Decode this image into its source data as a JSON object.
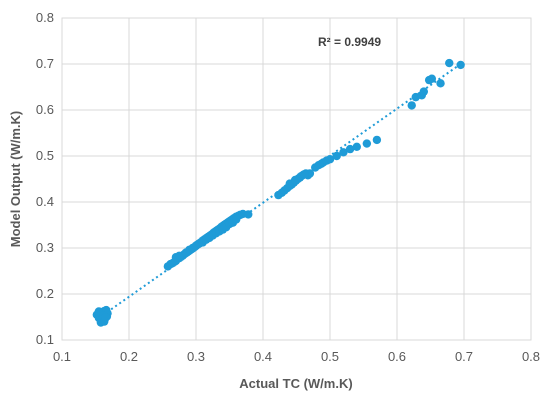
{
  "chart_data": {
    "type": "scatter",
    "title": "",
    "xlabel": "Actual TC (W/m.K)",
    "ylabel": "Model Output (W/m.K)",
    "xlim": [
      0.1,
      0.8
    ],
    "ylim": [
      0.1,
      0.8
    ],
    "x_ticks": [
      "0.1",
      "0.2",
      "0.3",
      "0.4",
      "0.5",
      "0.6",
      "0.7",
      "0.8"
    ],
    "y_ticks": [
      "0.1",
      "0.2",
      "0.3",
      "0.4",
      "0.5",
      "0.6",
      "0.7",
      "0.8"
    ],
    "grid": true,
    "marker_color": "#1f9bd7",
    "annotation": "R² = 0.9949",
    "trendline": {
      "style": "dotted",
      "x": [
        0.155,
        0.695
      ],
      "y": [
        0.148,
        0.7
      ]
    },
    "series": [
      {
        "x": [
          0.152,
          0.155,
          0.157,
          0.158,
          0.16,
          0.161,
          0.162,
          0.163,
          0.164,
          0.165,
          0.166,
          0.167,
          0.168,
          0.158,
          0.16,
          0.163,
          0.166,
          0.155,
          0.162,
          0.165,
          0.258,
          0.262,
          0.265,
          0.268,
          0.27,
          0.272,
          0.275,
          0.277,
          0.28,
          0.282,
          0.284,
          0.286,
          0.288,
          0.29,
          0.292,
          0.294,
          0.296,
          0.298,
          0.3,
          0.302,
          0.304,
          0.306,
          0.308,
          0.31,
          0.312,
          0.314,
          0.316,
          0.318,
          0.32,
          0.322,
          0.324,
          0.326,
          0.328,
          0.33,
          0.332,
          0.334,
          0.336,
          0.338,
          0.34,
          0.342,
          0.344,
          0.346,
          0.348,
          0.35,
          0.352,
          0.354,
          0.356,
          0.358,
          0.36,
          0.363,
          0.366,
          0.37,
          0.378,
          0.27,
          0.275,
          0.285,
          0.29,
          0.295,
          0.3,
          0.305,
          0.31,
          0.315,
          0.32,
          0.325,
          0.33,
          0.335,
          0.34,
          0.345,
          0.35,
          0.355,
          0.36,
          0.423,
          0.428,
          0.432,
          0.436,
          0.44,
          0.443,
          0.446,
          0.449,
          0.452,
          0.455,
          0.458,
          0.461,
          0.464,
          0.467,
          0.47,
          0.44,
          0.448,
          0.456,
          0.462,
          0.478,
          0.483,
          0.487,
          0.49,
          0.495,
          0.5,
          0.51,
          0.52,
          0.53,
          0.54,
          0.555,
          0.57,
          0.622,
          0.628,
          0.637,
          0.64,
          0.648,
          0.652,
          0.665,
          0.678,
          0.695
        ],
        "y": [
          0.155,
          0.148,
          0.152,
          0.142,
          0.16,
          0.15,
          0.157,
          0.163,
          0.146,
          0.155,
          0.165,
          0.151,
          0.158,
          0.138,
          0.145,
          0.14,
          0.16,
          0.162,
          0.153,
          0.149,
          0.26,
          0.265,
          0.267,
          0.27,
          0.272,
          0.276,
          0.278,
          0.28,
          0.283,
          0.286,
          0.288,
          0.29,
          0.292,
          0.294,
          0.296,
          0.298,
          0.3,
          0.302,
          0.305,
          0.307,
          0.309,
          0.311,
          0.313,
          0.316,
          0.318,
          0.32,
          0.322,
          0.324,
          0.326,
          0.328,
          0.33,
          0.333,
          0.335,
          0.337,
          0.339,
          0.341,
          0.343,
          0.346,
          0.348,
          0.35,
          0.352,
          0.354,
          0.356,
          0.358,
          0.36,
          0.362,
          0.364,
          0.366,
          0.368,
          0.37,
          0.372,
          0.374,
          0.373,
          0.28,
          0.283,
          0.29,
          0.296,
          0.3,
          0.305,
          0.31,
          0.312,
          0.318,
          0.322,
          0.327,
          0.332,
          0.336,
          0.34,
          0.345,
          0.352,
          0.355,
          0.362,
          0.415,
          0.42,
          0.425,
          0.43,
          0.435,
          0.438,
          0.442,
          0.446,
          0.45,
          0.453,
          0.457,
          0.46,
          0.462,
          0.458,
          0.462,
          0.44,
          0.448,
          0.455,
          0.46,
          0.475,
          0.48,
          0.483,
          0.486,
          0.49,
          0.493,
          0.5,
          0.508,
          0.515,
          0.52,
          0.527,
          0.535,
          0.61,
          0.628,
          0.632,
          0.64,
          0.665,
          0.668,
          0.658,
          0.702,
          0.698
        ]
      }
    ]
  }
}
